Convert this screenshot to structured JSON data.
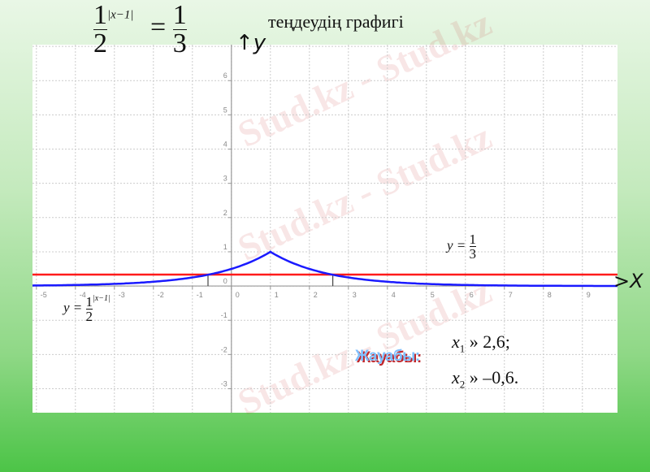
{
  "header": {
    "equation": {
      "base_num": "1",
      "base_den": "2",
      "exponent": "|x−1|",
      "equals": "=",
      "rhs_num": "1",
      "rhs_den": "3"
    },
    "caption": "теңдеудің графигі"
  },
  "watermark": "Stud.kz - Stud.kz",
  "answer": {
    "label": "Жауабы:",
    "x1": "x",
    "x1_sub": "1",
    "x1_value": "» 2,6;",
    "x2": "x",
    "x2_sub": "2",
    "x2_value": "» –0,6."
  },
  "chart_data": {
    "type": "line",
    "title": "",
    "xlabel": "X",
    "ylabel": "y",
    "xlim": [
      -5.1,
      9.9
    ],
    "ylim": [
      -3.7,
      7.05
    ],
    "grid": true,
    "x_ticks": [
      "-5",
      "-4",
      "-3",
      "-2",
      "-1",
      "0",
      "1",
      "2",
      "3",
      "4",
      "5",
      "6",
      "7",
      "8",
      "9"
    ],
    "y_ticks": [
      "6",
      "5",
      "4",
      "3",
      "2",
      "1",
      "0",
      "-1",
      "-2",
      "-3"
    ],
    "series": [
      {
        "name": "y = 1/2^|x−1|",
        "label_prefix": "y =",
        "label_num": "1",
        "label_den": "2",
        "label_exp": "|x−1|",
        "function": "(1/2)^|x-1|",
        "color": "#1a1aff",
        "x": [
          -5,
          -4,
          -3,
          -2,
          -1,
          -0.6,
          0,
          0.5,
          1,
          1.5,
          2,
          2.6,
          3,
          4,
          5,
          6,
          7,
          8,
          9,
          9.9
        ],
        "y": [
          0.016,
          0.031,
          0.063,
          0.125,
          0.25,
          0.33,
          0.5,
          0.707,
          1,
          0.707,
          0.5,
          0.33,
          0.25,
          0.125,
          0.063,
          0.031,
          0.016,
          0.008,
          0.004,
          0.002
        ]
      },
      {
        "name": "y = 1/3",
        "label_prefix": "y =",
        "label_num": "1",
        "label_den": "3",
        "function": "1/3",
        "color": "#ff1a1a",
        "x": [
          -5.1,
          9.9
        ],
        "y": [
          0.3333,
          0.3333
        ]
      }
    ],
    "intersections": [
      {
        "x": -0.6,
        "y": 0.3333
      },
      {
        "x": 2.6,
        "y": 0.3333
      }
    ],
    "axis_color": "#999999",
    "grid_color": "#cccccc"
  }
}
